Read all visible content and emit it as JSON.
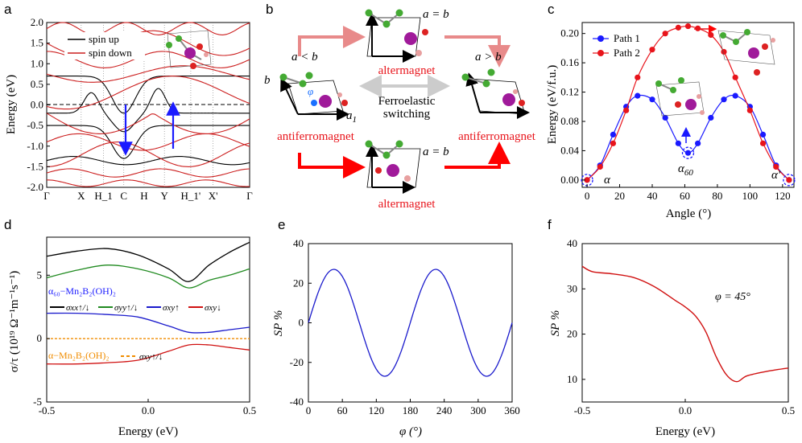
{
  "panels": {
    "a": {
      "label": "a",
      "ylabel": "Energy (eV)",
      "legend": [
        "spin up",
        "spin down"
      ],
      "xticks": [
        "Γ",
        "X",
        "H_1",
        "C",
        "H",
        "Y",
        "H_1'",
        "X'",
        "Γ"
      ],
      "yticks": [
        "-2.0",
        "-1.5",
        "-1.0",
        "-0.5",
        "0.0",
        "0.5",
        "1.0",
        "1.5",
        "2.0"
      ]
    },
    "b": {
      "label": "b",
      "a_lt_b": "a < b",
      "a_gt_b": "a > b",
      "a_eq_b_top": "a = b",
      "a_eq_b_bottom": "a = b",
      "altermagnet_top": "altermagnet",
      "altermagnet_bottom": "altermagnet",
      "antiferromagnet_left": "antiferromagnet",
      "antiferromagnet_right": "antiferromagnet",
      "switch_line1": "Ferroelastic",
      "switch_line2": "switching",
      "b_axis": "b",
      "a1_axis": "a",
      "a1_sub": "1",
      "phi": "φ"
    },
    "c": {
      "label": "c",
      "ylabel": "Energy (eV/f.u.)",
      "xlabel": "Angle (°)",
      "legend": [
        "Path 1",
        "Path 2"
      ],
      "xticks": [
        "0",
        "20",
        "40",
        "60",
        "80",
        "100",
        "120"
      ],
      "yticks": [
        "0.00",
        "0.04",
        "0.08",
        "0.12",
        "0.16",
        "0.20"
      ],
      "alpha": "α",
      "alpha60": "α",
      "alpha60_sub": "60",
      "alpha_prime": "α'"
    },
    "d": {
      "label": "d",
      "ylabel": "σ/τ (10¹⁹ Ω⁻¹m⁻¹s⁻¹)",
      "xlabel": "Energy (eV)",
      "xticks": [
        "-0.5",
        "0.0",
        "0.5"
      ],
      "yticks": [
        "5",
        "0",
        "-5"
      ],
      "material1": "α₆₀−Mn₂B₂(OH)₂",
      "material2": "α−Mn₂B₂(OH)₂",
      "legend": [
        "σxx↑/↓",
        "σyy↑/↓",
        "σxy↑",
        "σxy↓",
        "σxy↑/↓"
      ]
    },
    "e": {
      "label": "e",
      "ylabel": "SP %",
      "xlabel": "φ (°)",
      "xticks": [
        "0",
        "60",
        "120",
        "180",
        "240",
        "300",
        "360"
      ],
      "yticks": [
        "40",
        "20",
        "0",
        "-20",
        "-40"
      ]
    },
    "f": {
      "label": "f",
      "ylabel": "SP %",
      "xlabel": "Energy (eV)",
      "xticks": [
        "-0.5",
        "0.0",
        "0.5"
      ],
      "yticks": [
        "40",
        "30",
        "20",
        "10"
      ],
      "annotation": "φ = 45°"
    }
  },
  "colors": {
    "spin_up": "#000000",
    "spin_down": "#cc1f1f",
    "path1": "#1a1aff",
    "path2": "#e8141b",
    "sxx": "#000000",
    "syy": "#1f8a1f",
    "sxy_up": "#1a1acc",
    "sxy_dn": "#d01010",
    "dashed": "#f08c00"
  },
  "chart_data": [
    {
      "panel": "c",
      "type": "line",
      "xlabel": "Angle (°)",
      "ylabel": "Energy (eV/f.u.)",
      "xlim": [
        -3,
        127
      ],
      "ylim": [
        -0.01,
        0.215
      ],
      "series": [
        {
          "name": "Path 1",
          "x": [
            0,
            8,
            16,
            24,
            31,
            40,
            48,
            56,
            62,
            68,
            76,
            84,
            91,
            100,
            108,
            116,
            124
          ],
          "y": [
            0.0,
            0.02,
            0.062,
            0.1,
            0.115,
            0.11,
            0.085,
            0.05,
            0.037,
            0.05,
            0.085,
            0.11,
            0.115,
            0.1,
            0.062,
            0.02,
            0.0
          ]
        },
        {
          "name": "Path 2",
          "x": [
            0,
            8,
            16,
            24,
            31,
            40,
            48,
            56,
            62,
            68,
            76,
            84,
            91,
            100,
            108,
            116,
            124
          ],
          "y": [
            0.0,
            0.018,
            0.05,
            0.095,
            0.14,
            0.178,
            0.2,
            0.208,
            0.21,
            0.207,
            0.198,
            0.175,
            0.14,
            0.095,
            0.05,
            0.018,
            0.0
          ]
        }
      ]
    },
    {
      "panel": "e",
      "type": "line",
      "xlabel": "φ (°)",
      "ylabel": "SP %",
      "xlim": [
        0,
        360
      ],
      "ylim": [
        -40,
        40
      ],
      "series": [
        {
          "amplitude": 27.0,
          "function": "sin(2φ)"
        }
      ]
    },
    {
      "panel": "f",
      "type": "line",
      "xlabel": "Energy (eV)",
      "ylabel": "SP %",
      "xlim": [
        -0.5,
        0.5
      ],
      "ylim": [
        5,
        40
      ],
      "series": [
        {
          "x": [
            -0.5,
            -0.45,
            -0.35,
            -0.25,
            -0.15,
            -0.05,
            0.0,
            0.05,
            0.1,
            0.15,
            0.2,
            0.25,
            0.3,
            0.4,
            0.5
          ],
          "y": [
            35.0,
            33.8,
            33.3,
            32.5,
            30.5,
            27.5,
            26.0,
            24.0,
            20.5,
            15.0,
            11.0,
            9.5,
            10.8,
            11.8,
            12.5
          ]
        }
      ]
    },
    {
      "panel": "d",
      "type": "line",
      "xlabel": "Energy (eV)",
      "ylabel": "σ/τ",
      "xlim": [
        -0.5,
        0.5
      ],
      "ylim": [
        -5,
        8
      ],
      "series": [
        {
          "name": "σxx↑/↓",
          "x": [
            -0.5,
            -0.35,
            -0.2,
            -0.05,
            0.1,
            0.2,
            0.3,
            0.4,
            0.5
          ],
          "y": [
            6.5,
            6.9,
            7.1,
            6.6,
            5.5,
            4.5,
            5.8,
            6.8,
            7.6
          ]
        },
        {
          "name": "σyy↑/↓",
          "x": [
            -0.5,
            -0.35,
            -0.2,
            -0.05,
            0.1,
            0.2,
            0.3,
            0.4,
            0.5
          ],
          "y": [
            4.8,
            5.4,
            5.8,
            5.5,
            4.8,
            4.0,
            4.6,
            5.0,
            5.5
          ]
        },
        {
          "name": "σxy↑",
          "x": [
            -0.5,
            -0.35,
            -0.2,
            -0.05,
            0.1,
            0.2,
            0.3,
            0.4,
            0.5
          ],
          "y": [
            2.0,
            2.0,
            1.9,
            1.7,
            1.0,
            0.5,
            0.5,
            0.7,
            0.9
          ]
        },
        {
          "name": "σxy↓",
          "x": [
            -0.5,
            -0.35,
            -0.2,
            -0.05,
            0.1,
            0.2,
            0.3,
            0.4,
            0.5
          ],
          "y": [
            -2.0,
            -2.0,
            -1.9,
            -1.7,
            -1.0,
            -0.5,
            -0.5,
            -0.7,
            -0.9
          ]
        },
        {
          "name": "σxy↑/↓",
          "x": [
            -0.5,
            0.5
          ],
          "y": [
            0.0,
            0.0
          ]
        }
      ]
    }
  ]
}
